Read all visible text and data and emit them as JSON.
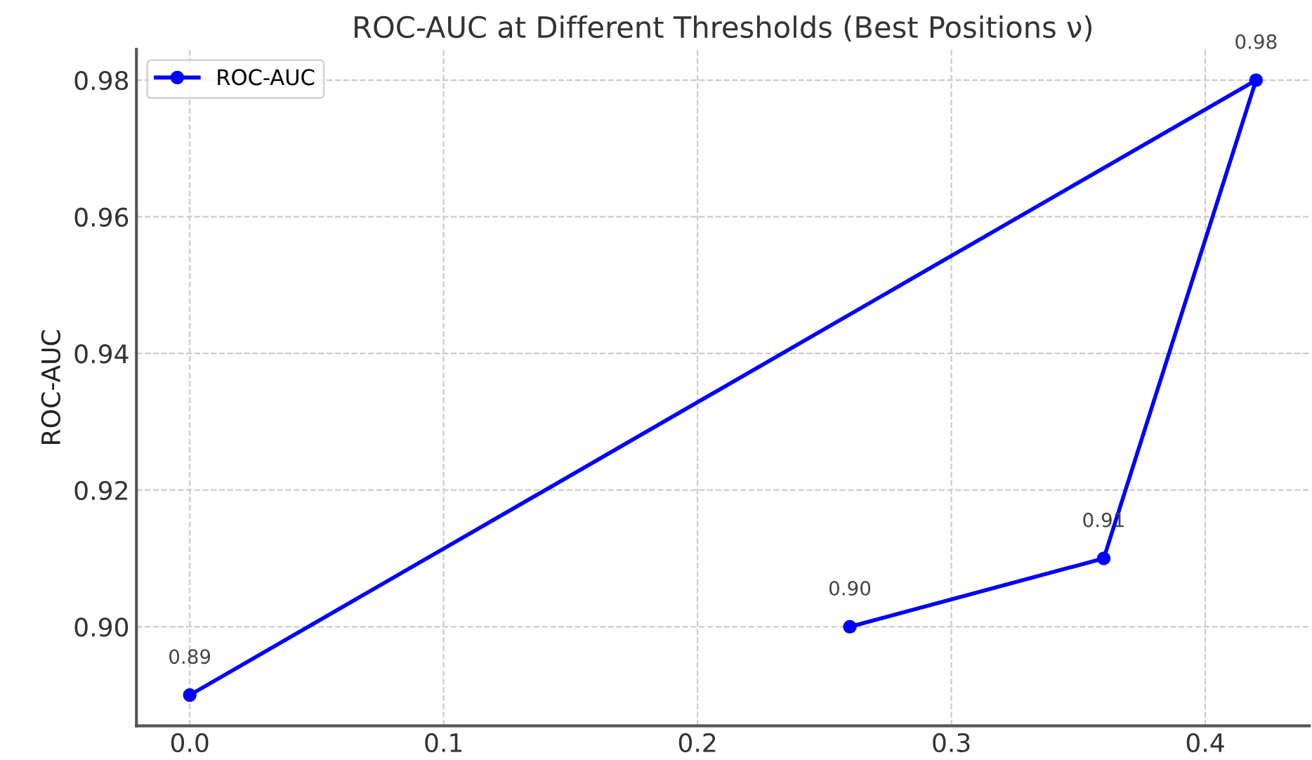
{
  "chart_data": {
    "type": "line",
    "title": "ROC-AUC at Different Thresholds (Best Positions ν)",
    "ylabel": "ROC-AUC",
    "x": [
      0.0,
      0.42,
      0.36,
      0.26
    ],
    "series": [
      {
        "name": "ROC-AUC",
        "color": "#0000ff",
        "values": [
          0.89,
          0.98,
          0.91,
          0.9
        ],
        "value_labels": [
          "0.89",
          "0.98",
          "0.91",
          "0.90"
        ]
      }
    ],
    "xlim": [
      -0.021,
      0.441
    ],
    "ylim": [
      0.8855,
      0.9845
    ],
    "xticks": [
      {
        "value": 0.0,
        "label": "0.0"
      },
      0.1,
      0.2,
      0.3,
      0.4
    ],
    "yticks": [
      {
        "value": 0.9,
        "label": "0.90"
      },
      0.92,
      0.94,
      0.96,
      0.98
    ],
    "grid": true,
    "legend": "top left",
    "marker": "circle",
    "line_style": "solid"
  }
}
